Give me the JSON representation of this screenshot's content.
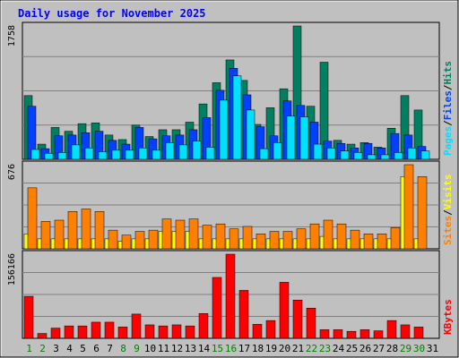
{
  "chart_data": {
    "type": "bar",
    "title": "Daily usage for November 2025",
    "categories": [
      "1",
      "2",
      "3",
      "4",
      "5",
      "6",
      "7",
      "8",
      "9",
      "10",
      "11",
      "12",
      "13",
      "14",
      "15",
      "16",
      "17",
      "18",
      "19",
      "20",
      "21",
      "22",
      "23",
      "24",
      "25",
      "26",
      "27",
      "28",
      "29",
      "30",
      "31"
    ],
    "weekend_days": [
      "1",
      "2",
      "8",
      "9",
      "15",
      "16",
      "22",
      "23",
      "29",
      "30"
    ],
    "panels": [
      {
        "id": "top",
        "ymax": 1758,
        "ymax_label": "1758",
        "legend": [
          {
            "label": "Pages",
            "color": "#00e0ff"
          },
          {
            "label": "Files",
            "color": "#0040ff"
          },
          {
            "label": "Hits",
            "color": "#008060"
          }
        ],
        "series": [
          {
            "name": "Hits",
            "color": "#008060",
            "values": [
              840,
              200,
              420,
              370,
              470,
              480,
              320,
              260,
              450,
              300,
              390,
              390,
              490,
              730,
              1010,
              1310,
              1040,
              460,
              680,
              930,
              1758,
              700,
              1280,
              250,
              200,
              220,
              160,
              410,
              840,
              650,
              0
            ]
          },
          {
            "name": "Files",
            "color": "#0040ff",
            "values": [
              700,
              140,
              310,
              320,
              350,
              370,
              250,
              200,
              420,
              270,
              310,
              320,
              390,
              550,
              910,
              1200,
              850,
              430,
              310,
              770,
              710,
              490,
              240,
              210,
              150,
              210,
              150,
              340,
              320,
              170,
              0
            ]
          },
          {
            "name": "Pages",
            "color": "#00e0ff",
            "values": [
              130,
              80,
              90,
              190,
              150,
              100,
              120,
              120,
              150,
              120,
              220,
              190,
              240,
              160,
              780,
              1100,
              650,
              140,
              220,
              570,
              560,
              200,
              150,
              110,
              90,
              60,
              60,
              90,
              150,
              110,
              0
            ]
          }
        ]
      },
      {
        "id": "middle",
        "ymax": 676,
        "ymax_label": "676",
        "legend": [
          {
            "label": "Sites",
            "color": "#ff8000"
          },
          {
            "label": "Visits",
            "color": "#ffff00"
          }
        ],
        "series": [
          {
            "name": "Visits",
            "color": "#ffff00",
            "values": [
              120,
              80,
              80,
              80,
              80,
              80,
              80,
              60,
              80,
              80,
              140,
              140,
              140,
              80,
              80,
              80,
              80,
              80,
              80,
              80,
              80,
              80,
              100,
              80,
              80,
              80,
              80,
              80,
              580,
              80,
              0
            ]
          },
          {
            "name": "Sites",
            "color": "#ff8000",
            "values": [
              490,
              220,
              230,
              300,
              320,
              300,
              150,
              110,
              140,
              150,
              240,
              230,
              240,
              190,
              200,
              160,
              180,
              120,
              140,
              140,
              160,
              200,
              230,
              200,
              150,
              120,
              120,
              170,
              676,
              580,
              0
            ]
          }
        ]
      },
      {
        "id": "bottom",
        "ymax": 156166,
        "ymax_label": "156166",
        "legend": [
          {
            "label": "KBytes",
            "color": "#ff0000"
          }
        ],
        "series": [
          {
            "name": "KBytes",
            "color": "#ff0000",
            "values": [
              78000,
              9000,
              19000,
              23000,
              23000,
              30000,
              30000,
              21000,
              45000,
              25000,
              23000,
              25000,
              23000,
              46000,
              113000,
              156166,
              89000,
              26000,
              33000,
              104000,
              71000,
              56000,
              16000,
              16000,
              13000,
              16000,
              14000,
              33000,
              25000,
              21000,
              0
            ]
          }
        ]
      }
    ]
  }
}
